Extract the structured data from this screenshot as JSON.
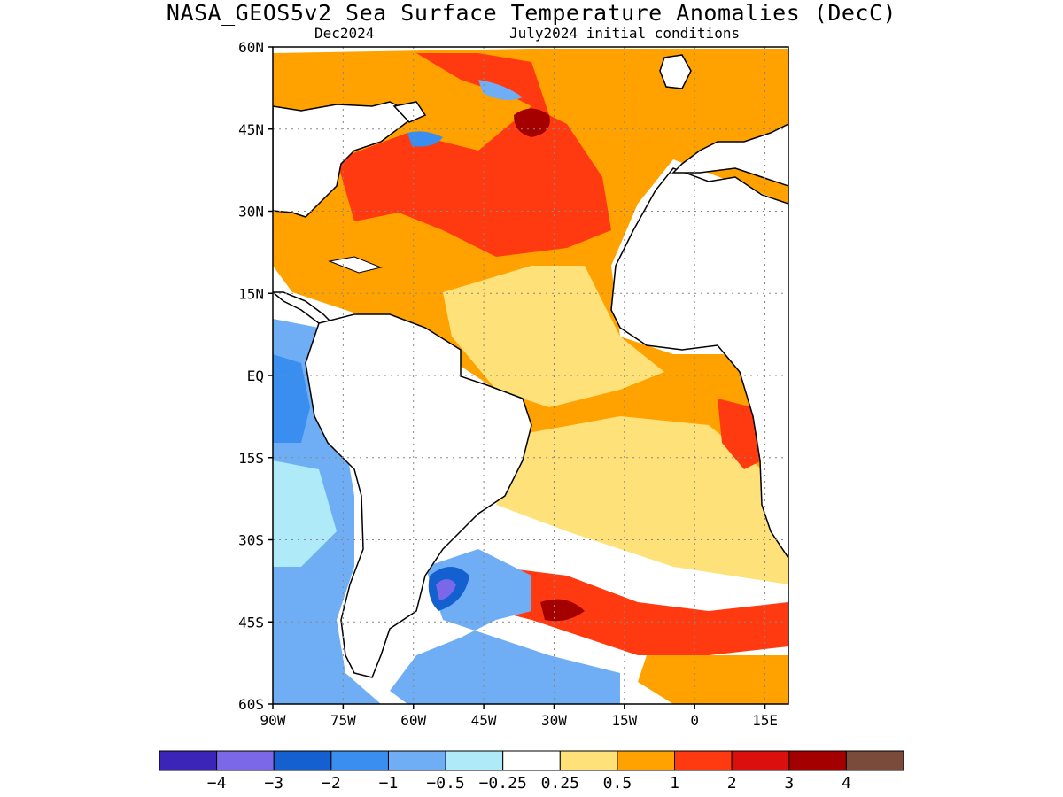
{
  "title": "NASA_GEOS5v2 Sea Surface Temperature Anomalies (DecC)",
  "subtitle_left": "Dec2024",
  "subtitle_right": "July2024 initial conditions",
  "map": {
    "lon_range": [
      -90,
      20
    ],
    "lat_range": [
      -60,
      60
    ],
    "grid": "dotted",
    "lat_ticks": [
      {
        "value": 60,
        "label": "60N"
      },
      {
        "value": 45,
        "label": "45N"
      },
      {
        "value": 30,
        "label": "30N"
      },
      {
        "value": 15,
        "label": "15N"
      },
      {
        "value": 0,
        "label": "EQ"
      },
      {
        "value": -15,
        "label": "15S"
      },
      {
        "value": -30,
        "label": "30S"
      },
      {
        "value": -45,
        "label": "45S"
      },
      {
        "value": -60,
        "label": "60S"
      }
    ],
    "lon_ticks": [
      {
        "value": -90,
        "label": "90W"
      },
      {
        "value": -75,
        "label": "75W"
      },
      {
        "value": -60,
        "label": "60W"
      },
      {
        "value": -45,
        "label": "45W"
      },
      {
        "value": -30,
        "label": "30W"
      },
      {
        "value": -15,
        "label": "15W"
      },
      {
        "value": 0,
        "label": "0"
      },
      {
        "value": 15,
        "label": "15E"
      }
    ]
  },
  "colorbar": {
    "colors": [
      "#3b25b8",
      "#7b68e8",
      "#1560d1",
      "#3a8ef0",
      "#6faef5",
      "#aeeaf7",
      "#ffffff",
      "#ffe17a",
      "#ffa200",
      "#ff3a10",
      "#dc0f0f",
      "#a40000",
      "#7a4a3a"
    ],
    "labels": [
      "-4",
      "-3",
      "-2",
      "-1",
      "-0.5",
      "-0.25",
      "0.25",
      "0.5",
      "1",
      "2",
      "3",
      "4"
    ]
  }
}
